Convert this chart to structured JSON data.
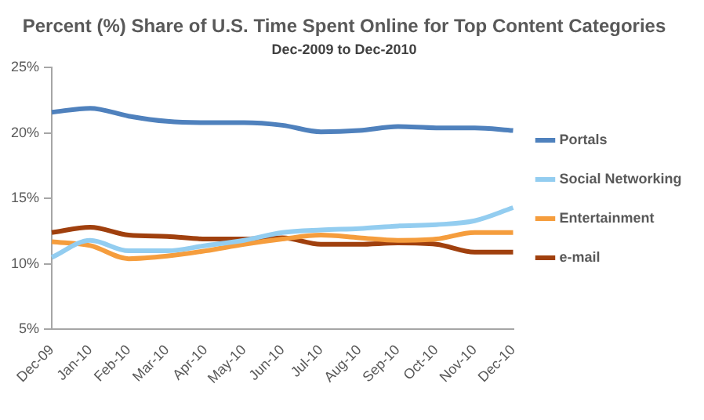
{
  "chart_data": {
    "type": "line",
    "title": "Percent (%) Share of U.S. Time Spent Online for Top Content Categories",
    "subtitle": "Dec-2009 to Dec-2010",
    "categories": [
      "Dec-09",
      "Jan-10",
      "Feb-10",
      "Mar-10",
      "Apr-10",
      "May-10",
      "Jun-10",
      "Jul-10",
      "Aug-10",
      "Sep-10",
      "Oct-10",
      "Nov-10",
      "Dec-10"
    ],
    "series": [
      {
        "name": "Portals",
        "color": "#4f81bd",
        "values": [
          21.6,
          21.9,
          21.3,
          20.9,
          20.8,
          20.8,
          20.6,
          20.1,
          20.2,
          20.5,
          20.4,
          20.4,
          20.2
        ]
      },
      {
        "name": "Social Networking",
        "color": "#93cdf0",
        "values": [
          10.5,
          11.8,
          11.0,
          11.0,
          11.4,
          11.8,
          12.4,
          12.6,
          12.7,
          12.9,
          13.0,
          13.3,
          14.3
        ]
      },
      {
        "name": "Entertainment",
        "color": "#f59d3d",
        "values": [
          11.7,
          11.4,
          10.4,
          10.6,
          11.0,
          11.5,
          11.9,
          12.2,
          12.0,
          11.8,
          11.9,
          12.4,
          12.4
        ]
      },
      {
        "name": "e-mail",
        "color": "#a0400e",
        "values": [
          12.4,
          12.8,
          12.2,
          12.1,
          11.9,
          11.9,
          12.0,
          11.5,
          11.5,
          11.6,
          11.5,
          10.9,
          10.9
        ]
      }
    ],
    "ylim": [
      5,
      25
    ],
    "yticks": [
      {
        "value": 5,
        "label": "5%"
      },
      {
        "value": 10,
        "label": "10%"
      },
      {
        "value": 15,
        "label": "15%"
      },
      {
        "value": 20,
        "label": "20%"
      },
      {
        "value": 25,
        "label": "25%"
      }
    ],
    "grid": false,
    "legend": "right",
    "marker": "none",
    "line_style": "solid"
  }
}
